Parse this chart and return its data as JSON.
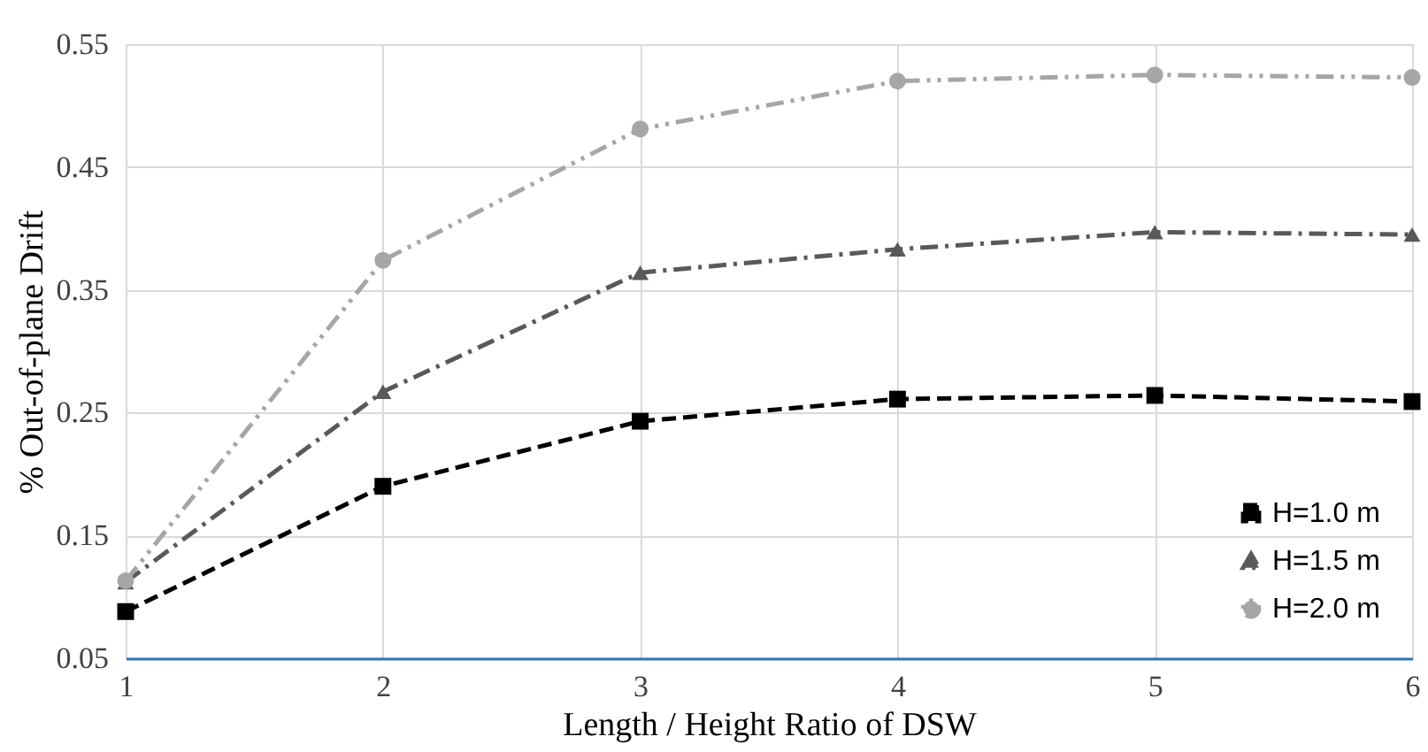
{
  "chart_data": {
    "type": "line",
    "xlabel": "Length / Height Ratio of DSW",
    "ylabel": "% Out-of-plane Drift",
    "x": [
      1,
      2,
      3,
      4,
      5,
      6
    ],
    "series": [
      {
        "name": "H=1.0 m",
        "color": "#000000",
        "marker": "square",
        "line_style": "dashed",
        "values": [
          0.088,
          0.19,
          0.243,
          0.261,
          0.264,
          0.259
        ]
      },
      {
        "name": "H=1.5 m",
        "color": "#595959",
        "marker": "triangle",
        "line_style": "dashdot",
        "values": [
          0.112,
          0.267,
          0.364,
          0.383,
          0.397,
          0.395
        ]
      },
      {
        "name": "H=2.0 m",
        "color": "#a6a6a6",
        "marker": "circle",
        "line_style": "dashdotdot",
        "values": [
          0.113,
          0.374,
          0.481,
          0.52,
          0.525,
          0.523
        ]
      }
    ],
    "xlim": [
      1,
      6
    ],
    "xticks": [
      1,
      2,
      3,
      4,
      5,
      6
    ],
    "ylim": [
      0.05,
      0.55
    ],
    "yticks": [
      0.05,
      0.15,
      0.25,
      0.35,
      0.45,
      0.55
    ],
    "grid": true,
    "legend": "bottom right"
  }
}
